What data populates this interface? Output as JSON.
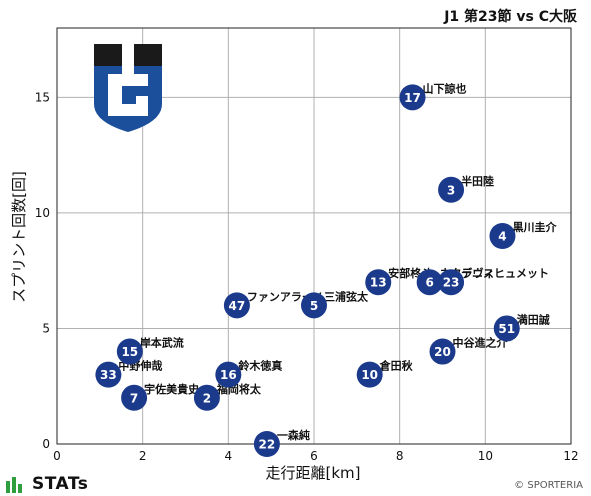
{
  "title": "J1 第23節 vs C大阪",
  "credit": "© SPORTERIA",
  "stats_logo_text": "STATs",
  "colors": {
    "marker": "#1b3a8c",
    "marker_text": "#ffffff",
    "grid": "#b0b0b0",
    "crest_blue": "#1b4f9c",
    "crest_black": "#1a1a1a"
  },
  "chart_data": {
    "type": "scatter",
    "title": "J1 第23節 vs C大阪",
    "xlabel": "走行距離[km]",
    "ylabel": "スプリント回数[回]",
    "xlim": [
      0,
      12
    ],
    "ylim": [
      0,
      18
    ],
    "xticks": [
      0,
      2,
      4,
      6,
      8,
      10,
      12
    ],
    "yticks": [
      0,
      5,
      10,
      15
    ],
    "grid": true,
    "points": [
      {
        "number": "17",
        "name": "山下諒也",
        "x": 8.3,
        "y": 15
      },
      {
        "number": "3",
        "name": "半田陸",
        "x": 9.2,
        "y": 11
      },
      {
        "number": "4",
        "name": "黒川圭介",
        "x": 10.4,
        "y": 9
      },
      {
        "number": "23",
        "name": "デニスヒュメット",
        "x": 9.2,
        "y": 7
      },
      {
        "number": "6",
        "name": "ネタラヴィ",
        "x": 8.7,
        "y": 7
      },
      {
        "number": "13",
        "name": "安部柊斗",
        "x": 7.5,
        "y": 7
      },
      {
        "number": "5",
        "name": "三浦弦太",
        "x": 6.0,
        "y": 6
      },
      {
        "number": "47",
        "name": "ファンアラーノ",
        "x": 4.2,
        "y": 6
      },
      {
        "number": "51",
        "name": "満田誠",
        "x": 10.5,
        "y": 5
      },
      {
        "number": "20",
        "name": "中谷進之介",
        "x": 9.0,
        "y": 4
      },
      {
        "number": "15",
        "name": "岸本武流",
        "x": 1.7,
        "y": 4
      },
      {
        "number": "10",
        "name": "倉田秋",
        "x": 7.3,
        "y": 3
      },
      {
        "number": "16",
        "name": "鈴木徳真",
        "x": 4.0,
        "y": 3
      },
      {
        "number": "33",
        "name": "中野伸哉",
        "x": 1.2,
        "y": 3
      },
      {
        "number": "2",
        "name": "福岡将太",
        "x": 3.5,
        "y": 2
      },
      {
        "number": "7",
        "name": "宇佐美貴史",
        "x": 1.8,
        "y": 2
      },
      {
        "number": "22",
        "name": "一森純",
        "x": 4.9,
        "y": 0
      }
    ]
  }
}
